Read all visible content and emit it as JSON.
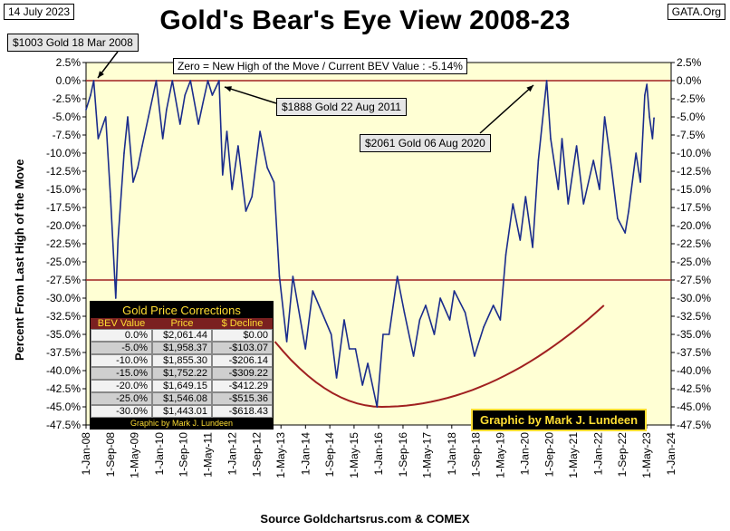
{
  "header": {
    "date": "14 July 2023",
    "title": "Gold's Bear's Eye View 2008-23",
    "source_tag": "GATA.Org"
  },
  "annotations": {
    "zero_note": "Zero = New High of the Move / Current  BEV Value : -5.14%",
    "callout_2008": "$1003 Gold 18 Mar 2008",
    "callout_2011": "$1888 Gold 22 Aug 2011",
    "callout_2020": "$2061 Gold 06 Aug 2020"
  },
  "credit": "Graphic by Mark J. Lundeen",
  "colors": {
    "series": "#1a2c8c",
    "plot_background": "#ffffd4",
    "reference_line": "#a02020",
    "curve": "#a02020",
    "table_header": "#7a2020",
    "table_gold": "#ffde33"
  },
  "table": {
    "title": "Gold Price Corrections",
    "headers": [
      "BEV Value",
      "Price",
      "$ Decline"
    ],
    "rows": [
      [
        "0.0%",
        "$2,061.44",
        "$0.00"
      ],
      [
        "-5.0%",
        "$1,958.37",
        "-$103.07"
      ],
      [
        "-10.0%",
        "$1,855.30",
        "-$206.14"
      ],
      [
        "-15.0%",
        "$1,752.22",
        "-$309.22"
      ],
      [
        "-20.0%",
        "$1,649.15",
        "-$412.29"
      ],
      [
        "-25.0%",
        "$1,546.08",
        "-$515.36"
      ],
      [
        "-30.0%",
        "$1,443.01",
        "-$618.43"
      ]
    ],
    "row_colors": [
      "#f2f2f2",
      "#cfcfcf",
      "#f2f2f2",
      "#cfcfcf",
      "#f2f2f2",
      "#cfcfcf",
      "#f2f2f2"
    ],
    "footer": "Graphic by Mark J. Lundeen"
  },
  "chart_data": {
    "type": "line",
    "title": "Gold's Bear's Eye View 2008-23",
    "ylabel": "Percent  From Last High of the Move",
    "xlabel": "Source Goldchartsrus.com & COMEX",
    "ylim": [
      -47.5,
      2.5
    ],
    "y_ticks": [
      2.5,
      0,
      -2.5,
      -5,
      -7.5,
      -10,
      -12.5,
      -15,
      -17.5,
      -20,
      -22.5,
      -25,
      -27.5,
      -30,
      -32.5,
      -35,
      -37.5,
      -40,
      -42.5,
      -45,
      -47.5
    ],
    "y_tick_labels": [
      "2.5%",
      "0.0%",
      "-2.5%",
      "-5.0%",
      "-7.5%",
      "-10.0%",
      "-12.5%",
      "-15.0%",
      "-17.5%",
      "-20.0%",
      "-22.5%",
      "-25.0%",
      "-27.5%",
      "-30.0%",
      "-32.5%",
      "-35.0%",
      "-37.5%",
      "-40.0%",
      "-42.5%",
      "-45.0%",
      "-47.5%"
    ],
    "x_ticks": [
      "1-Jan-08",
      "1-Sep-08",
      "1-May-09",
      "1-Jan-10",
      "1-Sep-10",
      "1-May-11",
      "1-Jan-12",
      "1-Sep-12",
      "1-May-13",
      "1-Jan-14",
      "1-Sep-14",
      "1-May-15",
      "1-Jan-16",
      "1-Sep-16",
      "1-May-17",
      "1-Jan-18",
      "1-Sep-18",
      "1-May-19",
      "1-Jan-20",
      "1-Sep-20",
      "1-May-21",
      "1-Jan-22",
      "1-Sep-22",
      "1-May-23",
      "1-Jan-24"
    ],
    "x_range": [
      "2008-01-01",
      "2024-01-01"
    ],
    "reference_lines": [
      0,
      -27.5
    ],
    "grid": false,
    "legend": "none",
    "series": [
      {
        "x": [
          "2008-01-01",
          "2008-02-15",
          "2008-03-18",
          "2008-05-01",
          "2008-07-15",
          "2008-09-01",
          "2008-10-24",
          "2008-11-15",
          "2009-01-15",
          "2009-02-20",
          "2009-04-15",
          "2009-06-01",
          "2009-07-15",
          "2009-09-15",
          "2009-12-02",
          "2010-02-05",
          "2010-03-15",
          "2010-05-12",
          "2010-07-28",
          "2010-09-15",
          "2010-11-09",
          "2011-01-28",
          "2011-03-15",
          "2011-05-02",
          "2011-06-15",
          "2011-08-22",
          "2011-09-26",
          "2011-11-08",
          "2011-12-29",
          "2012-02-28",
          "2012-05-16",
          "2012-07-15",
          "2012-10-04",
          "2012-12-15",
          "2013-02-20",
          "2013-04-15",
          "2013-06-28",
          "2013-08-28",
          "2013-12-31",
          "2014-03-14",
          "2014-06-15",
          "2014-09-15",
          "2014-11-07",
          "2015-01-22",
          "2015-03-15",
          "2015-05-15",
          "2015-07-24",
          "2015-09-15",
          "2015-12-17",
          "2016-02-15",
          "2016-04-15",
          "2016-07-06",
          "2016-09-15",
          "2016-12-15",
          "2017-02-15",
          "2017-04-15",
          "2017-07-10",
          "2017-09-08",
          "2017-12-12",
          "2018-01-25",
          "2018-05-15",
          "2018-08-16",
          "2018-11-15",
          "2019-02-20",
          "2019-05-01",
          "2019-06-25",
          "2019-09-04",
          "2019-11-15",
          "2020-01-08",
          "2020-03-19",
          "2020-05-15",
          "2020-08-06",
          "2020-09-15",
          "2020-11-30",
          "2021-01-06",
          "2021-03-08",
          "2021-06-01",
          "2021-08-09",
          "2021-11-16",
          "2022-01-15",
          "2022-03-08",
          "2022-05-15",
          "2022-07-15",
          "2022-09-28",
          "2022-11-03",
          "2023-01-15",
          "2023-02-28",
          "2023-04-13",
          "2023-05-04",
          "2023-05-30",
          "2023-06-29",
          "2023-07-14"
        ],
        "y": [
          -4,
          -2,
          0,
          -8,
          -5,
          -16,
          -30,
          -22,
          -10,
          -5,
          -14,
          -12,
          -9,
          -5,
          0,
          -8,
          -4,
          0,
          -6,
          -2,
          0,
          -6,
          -3,
          0,
          -2,
          0,
          -13,
          -7,
          -15,
          -9,
          -18,
          -16,
          -7,
          -12,
          -14,
          -27,
          -36,
          -27,
          -37,
          -29,
          -32,
          -35,
          -41,
          -33,
          -37,
          -37,
          -42,
          -39,
          -45,
          -35,
          -35,
          -27,
          -32,
          -38,
          -33,
          -31,
          -35,
          -30,
          -33,
          -29,
          -32,
          -38,
          -34,
          -31,
          -33,
          -24,
          -17,
          -22,
          -16,
          -23,
          -11,
          0,
          -8,
          -15,
          -8,
          -17,
          -9,
          -17,
          -11,
          -15,
          -5,
          -12,
          -19,
          -21,
          -18,
          -10,
          -14,
          -2,
          -0.5,
          -5,
          -8,
          -5.14
        ]
      }
    ],
    "curve_note": "trend arc drawn from 2013 through 2022"
  }
}
